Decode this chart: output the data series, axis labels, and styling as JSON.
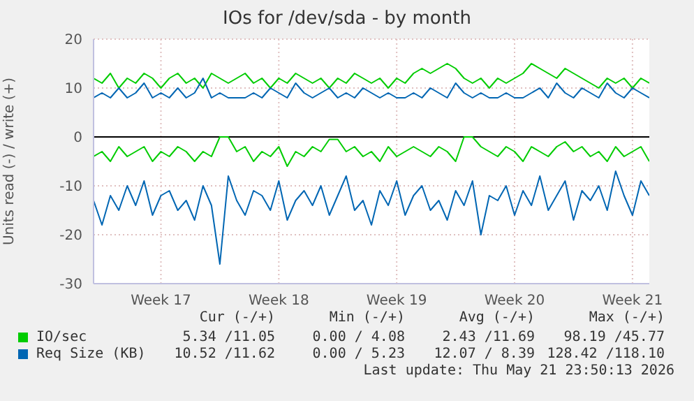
{
  "chart_data": {
    "type": "line",
    "title": "IOs for /dev/sda - by month",
    "ylabel": "Units read (-) / write (+)",
    "categories": [
      null,
      null,
      null,
      null,
      null,
      null,
      null,
      null,
      "Week 17",
      null,
      null,
      null,
      null,
      null,
      null,
      null,
      null,
      null,
      null,
      null,
      null,
      null,
      "Week 18",
      null,
      null,
      null,
      null,
      null,
      null,
      null,
      null,
      null,
      null,
      null,
      null,
      null,
      "Week 19",
      null,
      null,
      null,
      null,
      null,
      null,
      null,
      null,
      null,
      null,
      null,
      null,
      null,
      "Week 20",
      null,
      null,
      null,
      null,
      null,
      null,
      null,
      null,
      null,
      null,
      null,
      null,
      null,
      "Week 21",
      null,
      null
    ],
    "ylim": [
      -30,
      20
    ],
    "yticks": [
      -30,
      -20,
      -10,
      0,
      10,
      20
    ],
    "grid": true,
    "legend": "bottom",
    "line_style": "solid",
    "marker": "none",
    "ref_lines": [
      {
        "axis": "y",
        "value": 0,
        "color": "#000000"
      }
    ],
    "series": [
      {
        "name": "IO/sec",
        "color": "#00cc00",
        "values": [
          12,
          11,
          13,
          10,
          12,
          11,
          13,
          12,
          10,
          12,
          13,
          11,
          12,
          10,
          13,
          12,
          11,
          12,
          13,
          11,
          12,
          10,
          12,
          11,
          13,
          12,
          11,
          12,
          10,
          12,
          11,
          13,
          12,
          11,
          12,
          10,
          12,
          11,
          13,
          14,
          13,
          14,
          15,
          14,
          12,
          11,
          12,
          10,
          12,
          11,
          12,
          13,
          15,
          14,
          13,
          12,
          14,
          13,
          12,
          11,
          10,
          12,
          11,
          12,
          10,
          12,
          11
        ]
      },
      {
        "color": "#00cc00",
        "values": [
          -4,
          -3,
          -5,
          -2,
          -4,
          -3,
          -2,
          -5,
          -3,
          -4,
          -2,
          -3,
          -5,
          -3,
          -4,
          0,
          0,
          -3,
          -2,
          -5,
          -3,
          -4,
          -2,
          -6,
          -3,
          -4,
          -2,
          -3,
          -0.5,
          -0.5,
          -3,
          -2,
          -4,
          -3,
          -5,
          -2,
          -4,
          -3,
          -2,
          -3,
          -4,
          -2,
          -3,
          -5,
          0,
          0,
          -2,
          -3,
          -4,
          -2,
          -3,
          -5,
          -2,
          -3,
          -4,
          -2,
          -1,
          -3,
          -2,
          -4,
          -3,
          -5,
          -2,
          -4,
          -3,
          -2,
          -5
        ]
      },
      {
        "name": "Req Size (KB)",
        "color": "#0066b3",
        "values": [
          8,
          9,
          8,
          10,
          8,
          9,
          11,
          8,
          9,
          8,
          10,
          8,
          9,
          12,
          8,
          9,
          8,
          8,
          8,
          9,
          8,
          10,
          9,
          8,
          11,
          9,
          8,
          9,
          10,
          8,
          9,
          8,
          10,
          9,
          8,
          9,
          8,
          8,
          9,
          8,
          10,
          9,
          8,
          11,
          9,
          8,
          9,
          8,
          8,
          9,
          8,
          8,
          9,
          10,
          8,
          11,
          9,
          8,
          10,
          9,
          8,
          11,
          9,
          8,
          10,
          9,
          8
        ]
      },
      {
        "color": "#0066b3",
        "values": [
          -13,
          -18,
          -12,
          -15,
          -10,
          -14,
          -9,
          -16,
          -12,
          -11,
          -15,
          -13,
          -17,
          -10,
          -14,
          -26,
          -8,
          -13,
          -16,
          -11,
          -12,
          -15,
          -9,
          -17,
          -13,
          -11,
          -14,
          -10,
          -16,
          -12,
          -8,
          -15,
          -13,
          -18,
          -11,
          -14,
          -9,
          -16,
          -12,
          -10,
          -15,
          -13,
          -17,
          -11,
          -14,
          -9,
          -20,
          -12,
          -13,
          -10,
          -16,
          -11,
          -14,
          -8,
          -15,
          -12,
          -9,
          -17,
          -11,
          -13,
          -10,
          -15,
          -7,
          -12,
          -16,
          -9,
          -12
        ]
      }
    ],
    "annotations": [
      "Cur (-/+)",
      "Min (-/+)",
      "Avg (-/+)",
      "Max (-/+)",
      "5.34 /11.05",
      "0.00 / 4.08",
      "2.43 /11.69",
      "98.19 /45.77",
      "10.52 /11.62",
      "0.00 / 5.23",
      "12.07 / 8.39",
      "128.42 /118.10",
      "Last update: Thu May 21 23:50:13 2026"
    ]
  }
}
